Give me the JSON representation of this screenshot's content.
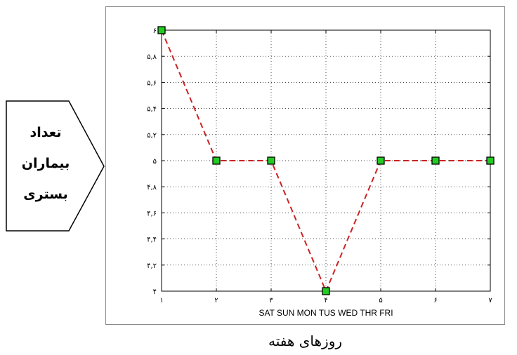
{
  "chart_data": {
    "type": "line",
    "x": [
      1,
      2,
      3,
      4,
      5,
      6,
      7
    ],
    "x_tick_labels": [
      "۱",
      "۲",
      "۳",
      "۴",
      "۵",
      "۶",
      "۷"
    ],
    "xlim": [
      1,
      7
    ],
    "xlabel": "SAT SUN MON TUS WED THR FRI",
    "y_ticks": [
      4,
      4.2,
      4.4,
      4.6,
      4.8,
      5,
      5.2,
      5.4,
      5.6,
      5.8,
      6
    ],
    "y_tick_labels": [
      "۴",
      "۴,۲",
      "۴,۴",
      "۴,۶",
      "۴,۸",
      "۵",
      "۵,۲",
      "۵,۴",
      "۵,۶",
      "۵,۸",
      "۶"
    ],
    "ylim": [
      4,
      6
    ],
    "grid": true,
    "series": [
      {
        "values": [
          6,
          5,
          5,
          4,
          5,
          5,
          5
        ],
        "color": "#cc2222",
        "marker_color": "#22cc22",
        "line_style": "dashed",
        "marker": "square"
      }
    ]
  },
  "ylabel_lines": [
    "تعداد",
    "بیماران",
    "بستری"
  ],
  "xcaption": "روزهای هفته"
}
